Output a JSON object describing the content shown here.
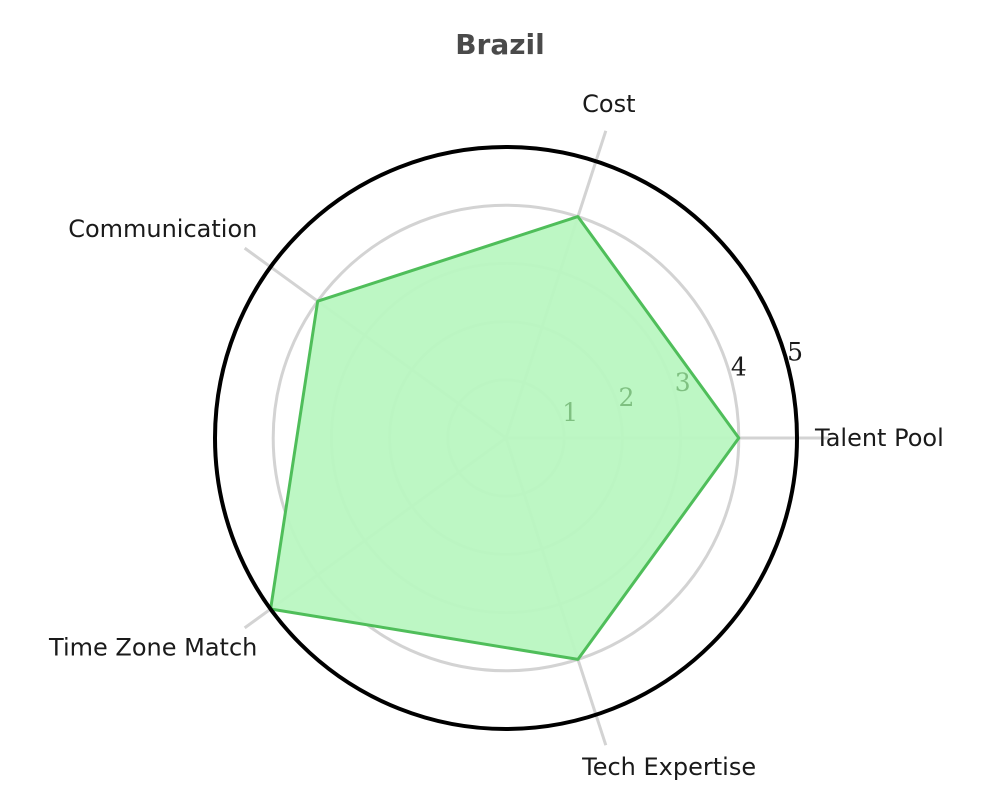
{
  "chart_data": {
    "type": "radar",
    "title": "Brazil",
    "axes": [
      "Talent Pool",
      "Cost",
      "Communication",
      "Time Zone Match",
      "Tech Expertise"
    ],
    "values": [
      4,
      4,
      4,
      5,
      4
    ],
    "rlim": [
      0,
      5
    ],
    "radial_ticks": [
      "1",
      "2",
      "3",
      "4",
      "5"
    ],
    "grid": true,
    "colors": {
      "fill": "#b9f7c1",
      "line": "#4fbe5a",
      "grid": "#d3d3d3",
      "outer_ring": "#000000",
      "tick_inner": "#7fc081",
      "tick_outer": "#1a1a1a"
    }
  }
}
